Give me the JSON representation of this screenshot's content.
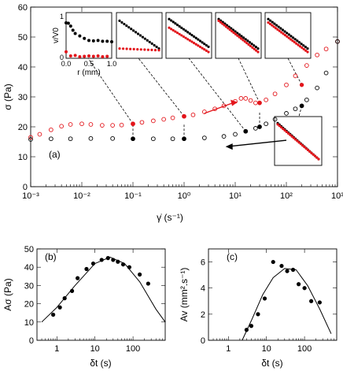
{
  "chart_data": [
    {
      "id": "a",
      "type": "scatter",
      "panel_label": "(a)",
      "xlabel": "γ̇ (s⁻¹)",
      "ylabel": "σ (Pa)",
      "xscale": "log",
      "xlim": [
        0.001,
        1000
      ],
      "ylim": [
        0,
        60
      ],
      "xticks": [
        "10⁻³",
        "10⁻²",
        "10⁻¹",
        "10⁰",
        "10¹",
        "10²",
        "10³"
      ],
      "yticks": [
        "0",
        "10",
        "20",
        "30",
        "40",
        "50",
        "60"
      ],
      "series": [
        {
          "color": "#e3151b",
          "marker": "open-circle",
          "x": [
            0.001,
            0.0015,
            0.0025,
            0.004,
            0.006,
            0.01,
            0.015,
            0.025,
            0.04,
            0.06,
            0.1,
            0.15,
            0.25,
            0.4,
            0.6,
            1,
            1.5,
            2.5,
            4,
            6,
            10,
            13,
            16,
            20,
            25,
            30,
            40,
            60,
            100,
            150,
            250,
            400,
            600,
            1000
          ],
          "y": [
            16.5,
            17.5,
            19,
            20.2,
            20.8,
            21,
            20.8,
            20.5,
            20.5,
            20.6,
            21,
            21.5,
            22,
            22.5,
            23,
            23.5,
            24,
            25,
            26,
            27,
            28.5,
            29.5,
            29.5,
            28.8,
            28,
            28,
            29,
            31,
            34,
            37,
            40.5,
            44,
            46,
            48.5
          ]
        },
        {
          "color": "#000000",
          "marker": "open-circle",
          "x": [
            0.001,
            0.0025,
            0.006,
            0.015,
            0.04,
            0.1,
            0.25,
            0.6,
            1,
            2.5,
            6,
            10,
            16,
            25,
            30,
            40,
            60,
            100,
            150,
            200,
            250,
            400,
            600,
            1000
          ],
          "y": [
            15.8,
            16,
            16,
            16.1,
            16.1,
            16,
            16,
            16,
            16,
            16.3,
            16.8,
            17.5,
            18.5,
            19.5,
            20,
            21,
            22.5,
            24.5,
            26,
            27,
            29,
            33,
            38,
            48.5
          ]
        },
        {
          "color": "#e3151b",
          "marker": "filled-circle",
          "x": [
            0.1,
            1,
            30,
            200
          ],
          "y": [
            21,
            23.5,
            28,
            34
          ]
        },
        {
          "color": "#000000",
          "marker": "filled-circle",
          "x": [
            0.1,
            1,
            16,
            30,
            200
          ],
          "y": [
            16,
            16,
            18.5,
            20,
            27
          ]
        }
      ],
      "insets": [
        {
          "xlabel": "r (mm)",
          "ylabel": "v/V0",
          "xticks": [
            "0.0",
            "0.5",
            "1.0"
          ],
          "yticks": [
            "0",
            "1"
          ],
          "black_points": [
            [
              0,
              0.48
            ],
            [
              0.05,
              0.47
            ],
            [
              0.1,
              0.4
            ],
            [
              0.15,
              0.3
            ],
            [
              0.2,
              0.22
            ],
            [
              0.3,
              0.16
            ],
            [
              0.4,
              0.1
            ],
            [
              0.5,
              0.05
            ],
            [
              0.6,
              0.04
            ],
            [
              0.7,
              0.05
            ],
            [
              0.8,
              0.03
            ],
            [
              0.9,
              0.03
            ],
            [
              1.0,
              0.02
            ]
          ],
          "red_points": [
            [
              0,
              0.12
            ],
            [
              0.1,
              0.02
            ],
            [
              0.2,
              0.03
            ],
            [
              0.3,
              0.0
            ],
            [
              0.4,
              0.01
            ],
            [
              0.5,
              0.02
            ],
            [
              0.6,
              0.01
            ],
            [
              0.7,
              0.02
            ],
            [
              0.8,
              0.0
            ],
            [
              0.9,
              0.01
            ]
          ]
        }
      ],
      "annotations": [
        "red arrow (increasing shear rate)",
        "black arrow (decreasing shear rate)"
      ]
    },
    {
      "id": "b",
      "type": "scatter",
      "panel_label": "(b)",
      "xlabel": "δt (s)",
      "ylabel": "Aσ (Pa)",
      "xscale": "log",
      "xlim": [
        0.3,
        700
      ],
      "ylim": [
        0,
        50
      ],
      "xticks": [
        "1",
        "10",
        "100"
      ],
      "yticks": [
        "0",
        "10",
        "20",
        "30",
        "40",
        "50"
      ],
      "points_x": [
        0.8,
        1.2,
        1.6,
        2.5,
        3.5,
        6,
        9,
        15,
        22,
        30,
        40,
        55,
        80,
        150,
        250
      ],
      "points_y": [
        14,
        18,
        23,
        27,
        34,
        39,
        42,
        44,
        45,
        44,
        43,
        41.5,
        40,
        36,
        31
      ],
      "fit_x": [
        0.4,
        1,
        3,
        10,
        25,
        60,
        150,
        400,
        700
      ],
      "fit_y": [
        10,
        18,
        30,
        42,
        45.5,
        42,
        32,
        17,
        10
      ]
    },
    {
      "id": "c",
      "type": "scatter",
      "panel_label": "(c)",
      "xlabel": "δt (s)",
      "ylabel": "Av (mm².s⁻¹)",
      "xscale": "log",
      "xlim": [
        0.3,
        700
      ],
      "ylim": [
        0,
        7
      ],
      "xticks": [
        "1",
        "10",
        "100"
      ],
      "yticks": [
        "0",
        "2",
        "4",
        "6"
      ],
      "points_x": [
        3,
        4,
        6,
        9,
        15,
        25,
        35,
        50,
        70,
        100,
        150,
        250
      ],
      "points_y": [
        0.8,
        1.1,
        2.0,
        3.2,
        6.0,
        5.7,
        5.3,
        5.4,
        4.3,
        4.0,
        3.0,
        2.9
      ],
      "fit_x": [
        2.3,
        4,
        8,
        15,
        30,
        60,
        120,
        250,
        500
      ],
      "fit_y": [
        0,
        1.5,
        3.5,
        4.8,
        5.5,
        5.4,
        4.2,
        2.4,
        0.5
      ]
    }
  ]
}
